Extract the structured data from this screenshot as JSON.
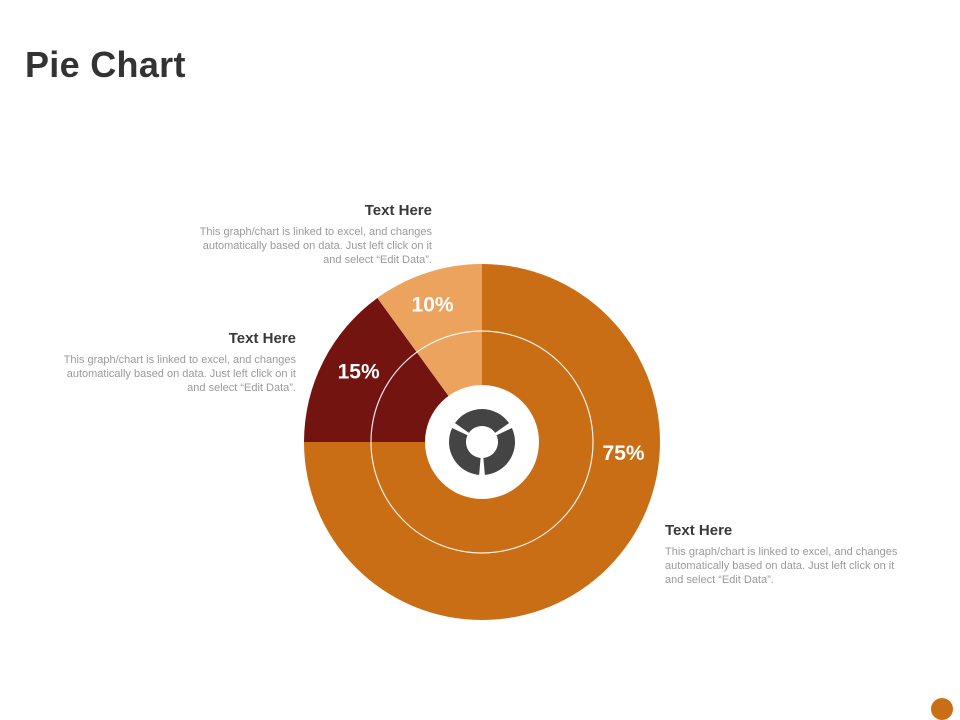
{
  "page": {
    "title": "Pie Chart"
  },
  "colors": {
    "accent": "#c96e14",
    "dark": "#731411",
    "light": "#eba35e",
    "icon": "#444444"
  },
  "icons": {
    "center": "donut-chart-icon"
  },
  "callouts": [
    {
      "heading": "Text Here",
      "body": "This graph/chart is linked to excel, and changes automatically based on data. Just left click on it and select “Edit Data”."
    },
    {
      "heading": "Text Here",
      "body": "This graph/chart is linked to excel, and changes automatically based on data. Just left click on it and select “Edit Data”."
    },
    {
      "heading": "Text Here",
      "body": "This graph/chart is linked to excel, and changes automatically based on data. Just left click on it and select “Edit Data”."
    }
  ],
  "chart_data": {
    "type": "pie",
    "title": "",
    "slices": [
      {
        "label": "75%",
        "value": 75,
        "color": "#c96e14"
      },
      {
        "label": "15%",
        "value": 15,
        "color": "#731411"
      },
      {
        "label": "10%",
        "value": 10,
        "color": "#eba35e"
      }
    ]
  }
}
